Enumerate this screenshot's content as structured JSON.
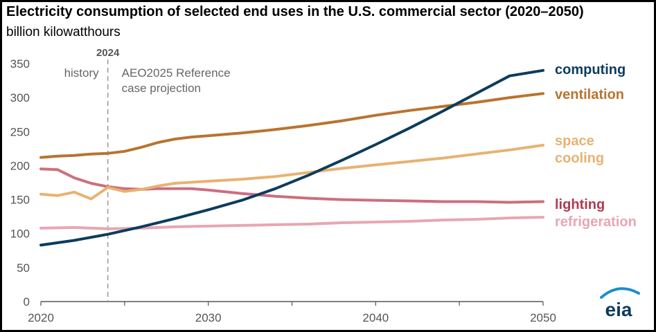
{
  "chart_data": {
    "type": "line",
    "title": "Electricity consumption of selected end uses in the U.S. commercial sector (2020–2050)",
    "subtitle": "billion kilowatthours",
    "xlabel": "",
    "ylabel": "",
    "xlim": [
      2020,
      2050
    ],
    "ylim": [
      0,
      350
    ],
    "x_ticks": [
      2020,
      2030,
      2040,
      2050
    ],
    "y_ticks": [
      0,
      50,
      100,
      150,
      200,
      250,
      300,
      350
    ],
    "grid": false,
    "divider_year": 2024,
    "divider_label": "2024",
    "history_label": "history",
    "projection_label_line1": "AEO2025 Reference",
    "projection_label_line2": "case projection",
    "logo_text": "eia",
    "series": [
      {
        "name": "computing",
        "label_lines": [
          "computing"
        ],
        "color": "#0c3c5c",
        "x": [
          2020,
          2022,
          2024,
          2026,
          2028,
          2030,
          2032,
          2034,
          2036,
          2038,
          2040,
          2042,
          2044,
          2046,
          2048,
          2050
        ],
        "values": [
          83,
          90,
          99,
          110,
          122,
          135,
          149,
          166,
          186,
          208,
          231,
          255,
          280,
          306,
          332,
          340
        ]
      },
      {
        "name": "ventilation",
        "label_lines": [
          "ventilation"
        ],
        "color": "#b8742e",
        "x": [
          2020,
          2021,
          2022,
          2023,
          2024,
          2025,
          2026,
          2027,
          2028,
          2029,
          2030,
          2032,
          2034,
          2036,
          2038,
          2040,
          2042,
          2044,
          2046,
          2048,
          2050
        ],
        "values": [
          212,
          214,
          215,
          217,
          218,
          221,
          227,
          234,
          239,
          242,
          244,
          248,
          253,
          259,
          266,
          274,
          281,
          287,
          293,
          300,
          306
        ]
      },
      {
        "name": "space cooling",
        "label_lines": [
          "space",
          "cooling"
        ],
        "color": "#e8b270",
        "x": [
          2020,
          2021,
          2022,
          2023,
          2024,
          2025,
          2026,
          2027,
          2028,
          2030,
          2032,
          2034,
          2036,
          2038,
          2040,
          2042,
          2044,
          2046,
          2048,
          2050
        ],
        "values": [
          158,
          156,
          161,
          151,
          168,
          162,
          165,
          170,
          174,
          177,
          180,
          184,
          190,
          196,
          201,
          206,
          211,
          217,
          223,
          230
        ]
      },
      {
        "name": "lighting",
        "label_lines": [
          "lighting"
        ],
        "color": "#cc6f7f",
        "x": [
          2020,
          2021,
          2022,
          2023,
          2024,
          2025,
          2026,
          2027,
          2028,
          2029,
          2030,
          2032,
          2034,
          2036,
          2038,
          2040,
          2042,
          2044,
          2046,
          2048,
          2050
        ],
        "values": [
          195,
          194,
          182,
          174,
          169,
          166,
          165,
          166,
          166,
          166,
          164,
          159,
          155,
          152,
          150,
          149,
          148,
          147,
          147,
          146,
          147
        ]
      },
      {
        "name": "refrigeration",
        "label_lines": [
          "refrigeration"
        ],
        "color": "#e8a6b2",
        "x": [
          2020,
          2022,
          2024,
          2026,
          2028,
          2030,
          2032,
          2034,
          2036,
          2038,
          2040,
          2042,
          2044,
          2046,
          2048,
          2050
        ],
        "values": [
          108,
          109,
          107,
          108,
          110,
          111,
          112,
          113,
          114,
          116,
          117,
          118,
          120,
          121,
          123,
          124
        ]
      }
    ],
    "label_colors": {
      "computing": "#0c3c5c",
      "ventilation": "#b8742e",
      "space cooling": "#e8b270",
      "lighting": "#b03a52",
      "refrigeration": "#e8a6b2"
    }
  }
}
